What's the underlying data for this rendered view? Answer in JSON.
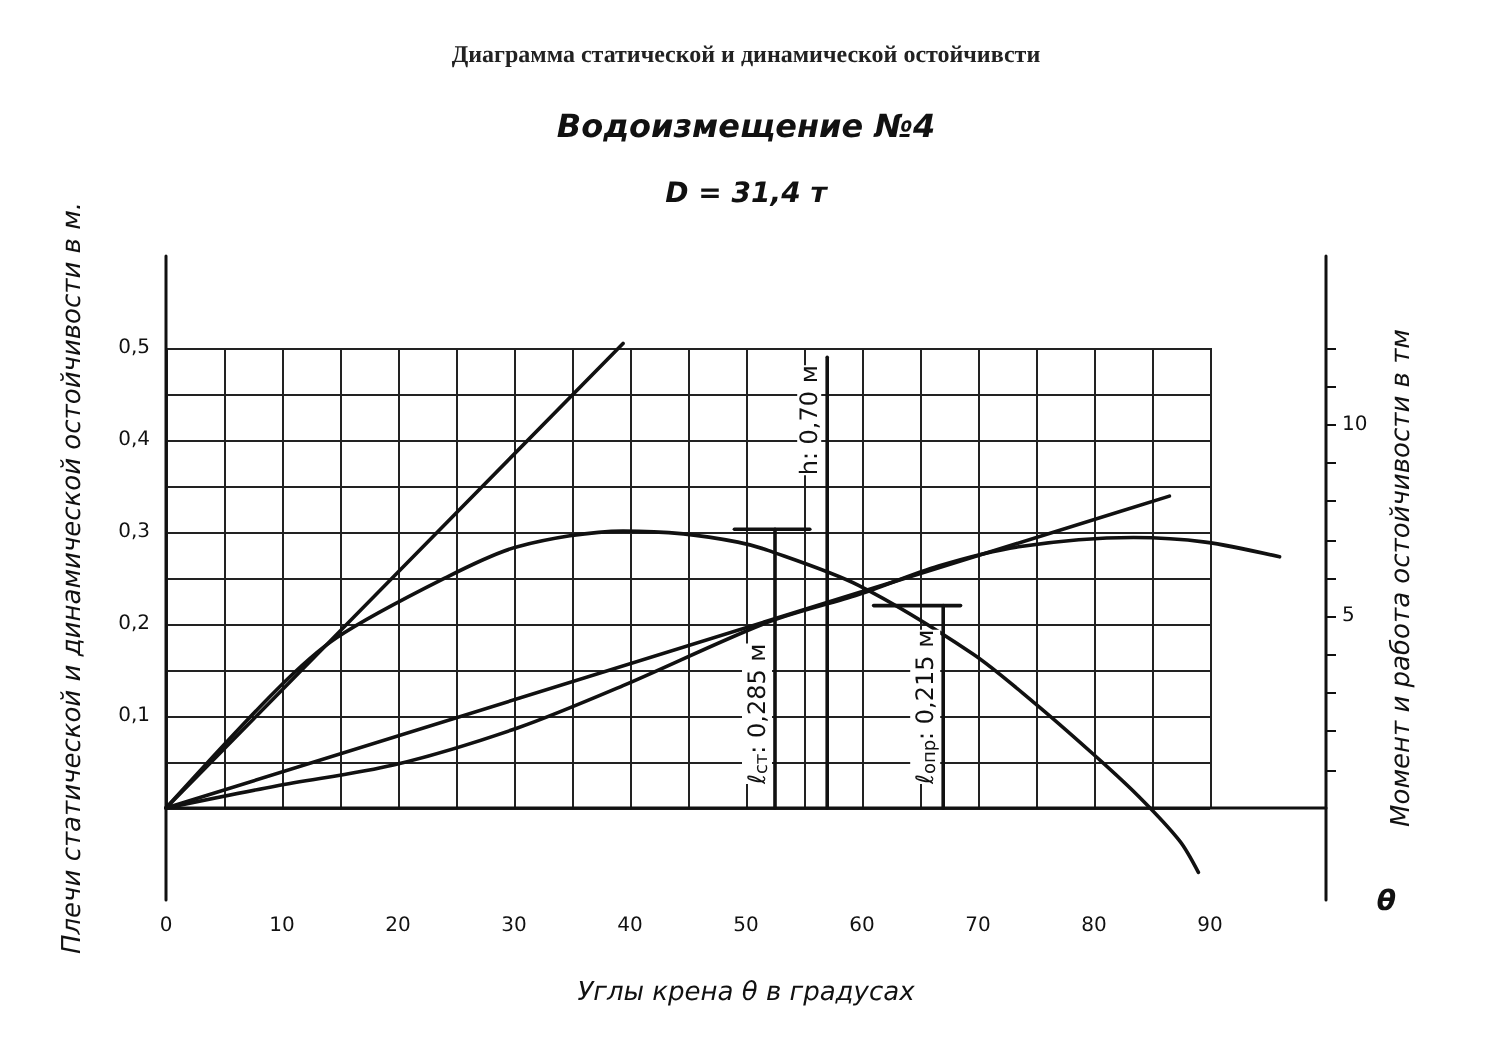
{
  "chart_data": {
    "type": "line",
    "title": "Диаграмма статической и динамической остойчивсти",
    "subtitle": "Водоизмещение №4",
    "xlabel": "Углы крена θ в градусах",
    "ylabel": "Плечи статической и динамической остойчивости в м.",
    "y2label": "Момент и работа остойчивости в тм",
    "annotations": [
      "D = 31,4 т",
      "θ",
      {
        "text": "h: 0,70 м",
        "x": 57,
        "y": 0.49
      },
      {
        "text": "ℓ$_{ст}$: 0,285 м",
        "x": 52.5,
        "y": 0
      },
      {
        "text": "ℓ$_{опр}$: 0,215 м",
        "x": 67,
        "y": 0
      }
    ],
    "series": [
      {
        "color": "#111111",
        "x": [
          0,
          9.5,
          14.7,
          23.9,
          30.3,
          39.4,
          44.6,
          49.3,
          51.9,
          59.7,
          69.5,
          74.7,
          79.9,
          83.9,
          87.4,
          89
        ],
        "values": [
          0,
          0.128,
          0.185,
          0.249,
          0.284,
          0.301,
          0.298,
          0.289,
          0.28,
          0.242,
          0.168,
          0.116,
          0.059,
          0.012,
          -0.036,
          -0.07
        ]
      },
      {
        "color": "#111111",
        "x": [
          0,
          9.5,
          19.7,
          30.3,
          39.4,
          51.9,
          59.7,
          66.6,
          73.5,
          83.4,
          89.6,
          96
        ],
        "values": [
          0,
          0.024,
          0.047,
          0.087,
          0.133,
          0.202,
          0.232,
          0.263,
          0.284,
          0.294,
          0.289,
          0.273
        ]
      },
      {
        "color": "#111111",
        "x": [
          0,
          39.4
        ],
        "values": [
          0,
          0.505
        ]
      },
      {
        "color": "#111111",
        "x": [
          0,
          86.5
        ],
        "values": [
          0,
          0.339
        ]
      },
      {
        "color": "#111111",
        "x": [
          57,
          57
        ],
        "values": [
          0,
          0.49
        ]
      },
      {
        "color": "#111111",
        "x": [
          52.5,
          52.5
        ],
        "values": [
          0,
          0.303
        ]
      },
      {
        "color": "#111111",
        "x": [
          49,
          55.5
        ],
        "values": [
          0.303,
          0.303
        ]
      },
      {
        "color": "#111111",
        "x": [
          67,
          67
        ],
        "values": [
          0,
          0.22
        ]
      },
      {
        "color": "#111111",
        "x": [
          61,
          68.5
        ],
        "values": [
          0.22,
          0.22
        ]
      }
    ],
    "xlim": [
      0,
      100
    ],
    "xticks": [
      0,
      {
        "value": 5,
        "label": null
      },
      10,
      {
        "value": 15,
        "label": null
      },
      20,
      {
        "value": 25,
        "label": null
      },
      30,
      {
        "value": 35,
        "label": null
      },
      40,
      {
        "value": 45,
        "label": null
      },
      50,
      {
        "value": 55,
        "label": null
      },
      60,
      {
        "value": 65,
        "label": null
      },
      70,
      {
        "value": 75,
        "label": null
      },
      80,
      {
        "value": 85,
        "label": null
      },
      90
    ],
    "ylim": [
      -0.1,
      0.6
    ],
    "yticks": [
      {
        "value": 0,
        "label": null
      },
      {
        "value": 0.05,
        "label": null
      },
      {
        "value": 0.1,
        "label": "0,1"
      },
      {
        "value": 0.15,
        "label": null
      },
      {
        "value": 0.2,
        "label": "0,2"
      },
      {
        "value": 0.25,
        "label": null
      },
      {
        "value": 0.3,
        "label": "0,3"
      },
      {
        "value": 0.35,
        "label": null
      },
      {
        "value": 0.4,
        "label": "0,4"
      },
      {
        "value": 0.45,
        "label": null
      },
      {
        "value": 0.5,
        "label": "0,5"
      }
    ],
    "y2lim": [
      -2.4,
      14.4
    ],
    "y2ticks": [
      {
        "value": 1,
        "label": null
      },
      {
        "value": 2,
        "label": null
      },
      {
        "value": 3,
        "label": null
      },
      {
        "value": 4,
        "label": null
      },
      5,
      {
        "value": 6,
        "label": null
      },
      {
        "value": 7,
        "label": null
      },
      {
        "value": 8,
        "label": null
      },
      {
        "value": 9,
        "label": null
      },
      10,
      {
        "value": 11,
        "label": null
      },
      {
        "value": 12,
        "label": null
      }
    ],
    "grid": true,
    "marker": "none",
    "line_style": "solid"
  }
}
